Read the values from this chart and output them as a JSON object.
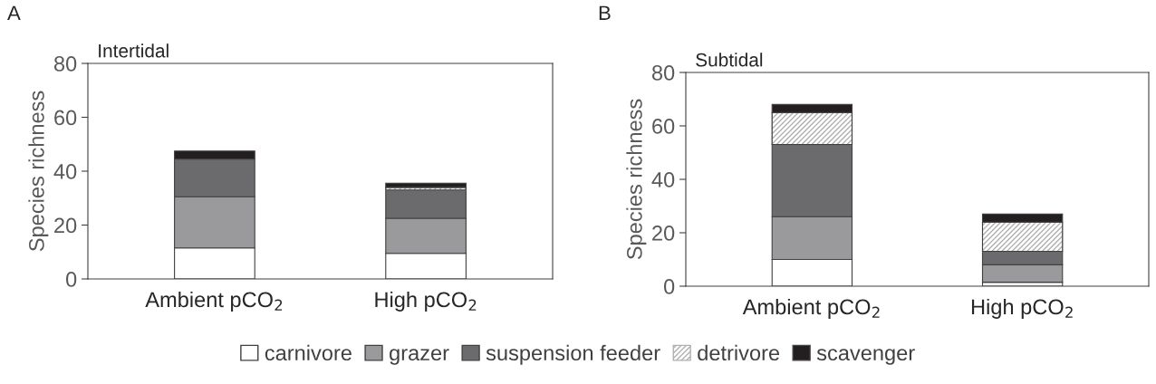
{
  "chart_data": [
    {
      "type": "bar",
      "title": "Intertidal",
      "ylabel": "Species richness",
      "annotations": [
        "A"
      ],
      "stacked": true,
      "categories": [
        "Ambient pCO$_{2}$",
        "High pCO$_{2}$"
      ],
      "ylim": [
        0,
        80
      ],
      "yticks": [
        0,
        20,
        40,
        60,
        80
      ],
      "grid": false,
      "legend": "bottom",
      "series": [
        {
          "name": "carnivore",
          "color": "#ffffff",
          "values": [
            11.5,
            9.5
          ]
        },
        {
          "name": "grazer",
          "color": "#9a9a9c",
          "values": [
            19,
            13
          ]
        },
        {
          "name": "suspension feeder",
          "color": "#6b6b6d",
          "values": [
            14,
            10.5
          ]
        },
        {
          "name": "detrivore",
          "color": "#b0b0b0",
          "values": [
            0,
            1
          ]
        },
        {
          "name": "scavenger",
          "color": "#231f20",
          "values": [
            3,
            1.5
          ]
        }
      ]
    },
    {
      "type": "bar",
      "title": "Subtidal",
      "ylabel": "Species richness",
      "annotations": [
        "B"
      ],
      "stacked": true,
      "categories": [
        "Ambient pCO$_{2}$",
        "High pCO$_{2}$"
      ],
      "ylim": [
        0,
        80
      ],
      "yticks": [
        0,
        20,
        40,
        60,
        80
      ],
      "grid": false,
      "series": [
        {
          "color": "#ffffff",
          "values": [
            10,
            1.5
          ]
        },
        {
          "color": "#9a9a9c",
          "values": [
            16,
            6.5
          ]
        },
        {
          "color": "#6b6b6d",
          "values": [
            27,
            5
          ]
        },
        {
          "color": "#b0b0b0",
          "values": [
            12,
            11
          ]
        },
        {
          "color": "#231f20",
          "values": [
            3,
            3
          ]
        }
      ]
    }
  ]
}
